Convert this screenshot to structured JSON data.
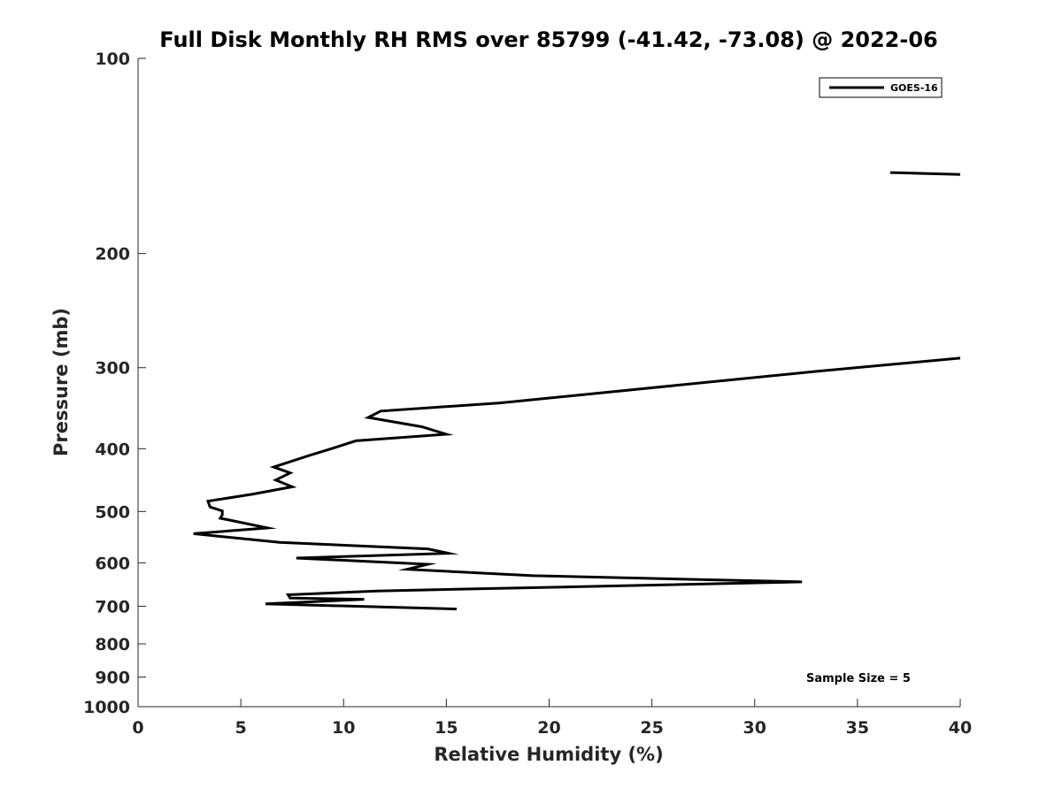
{
  "chart_data": {
    "type": "line",
    "title": "Full Disk Monthly RH RMS over 85799 (-41.42, -73.08) @ 2022-06",
    "xlabel": "Relative Humidity (%)",
    "ylabel": "Pressure (mb)",
    "xlim": [
      0,
      40
    ],
    "ylim": [
      100,
      1000
    ],
    "yscale": "log",
    "y_reversed": true,
    "grid": false,
    "legend_position": "top-right",
    "x_ticks": [
      "0",
      "5",
      "10",
      "15",
      "20",
      "25",
      "30",
      "35",
      "40"
    ],
    "y_ticks": [
      "100",
      "200",
      "300",
      "400",
      "500",
      "600",
      "700",
      "800",
      "900",
      "1000"
    ],
    "annotation": "Sample Size = 5",
    "series": [
      {
        "name": "GOES-16",
        "color": "#000000",
        "segments": [
          [
            {
              "x": 36.6,
              "y": 150
            },
            {
              "x": 40.0,
              "y": 151
            }
          ],
          [
            {
              "x": 40.0,
              "y": 290
            },
            {
              "x": 33.0,
              "y": 304
            },
            {
              "x": 17.6,
              "y": 340
            },
            {
              "x": 11.8,
              "y": 350
            },
            {
              "x": 11.2,
              "y": 358
            },
            {
              "x": 13.8,
              "y": 370
            },
            {
              "x": 15.0,
              "y": 380
            },
            {
              "x": 10.6,
              "y": 389
            },
            {
              "x": 9.3,
              "y": 401
            },
            {
              "x": 8.3,
              "y": 410
            },
            {
              "x": 6.6,
              "y": 427
            },
            {
              "x": 7.4,
              "y": 436
            },
            {
              "x": 6.7,
              "y": 447
            },
            {
              "x": 7.5,
              "y": 458
            },
            {
              "x": 5.6,
              "y": 470
            },
            {
              "x": 3.4,
              "y": 482
            },
            {
              "x": 3.5,
              "y": 492
            },
            {
              "x": 4.1,
              "y": 499
            },
            {
              "x": 4.1,
              "y": 506
            },
            {
              "x": 4.0,
              "y": 512
            },
            {
              "x": 6.3,
              "y": 530
            },
            {
              "x": 2.7,
              "y": 541
            },
            {
              "x": 6.9,
              "y": 558
            },
            {
              "x": 14.1,
              "y": 571
            },
            {
              "x": 15.1,
              "y": 580
            },
            {
              "x": 7.7,
              "y": 590
            },
            {
              "x": 14.1,
              "y": 603
            },
            {
              "x": 13.1,
              "y": 614
            },
            {
              "x": 19.2,
              "y": 628
            },
            {
              "x": 32.3,
              "y": 642
            },
            {
              "x": 11.6,
              "y": 663
            },
            {
              "x": 7.3,
              "y": 672
            },
            {
              "x": 7.4,
              "y": 680
            },
            {
              "x": 11.0,
              "y": 683
            },
            {
              "x": 6.2,
              "y": 694
            },
            {
              "x": 15.5,
              "y": 707
            }
          ]
        ]
      }
    ]
  }
}
